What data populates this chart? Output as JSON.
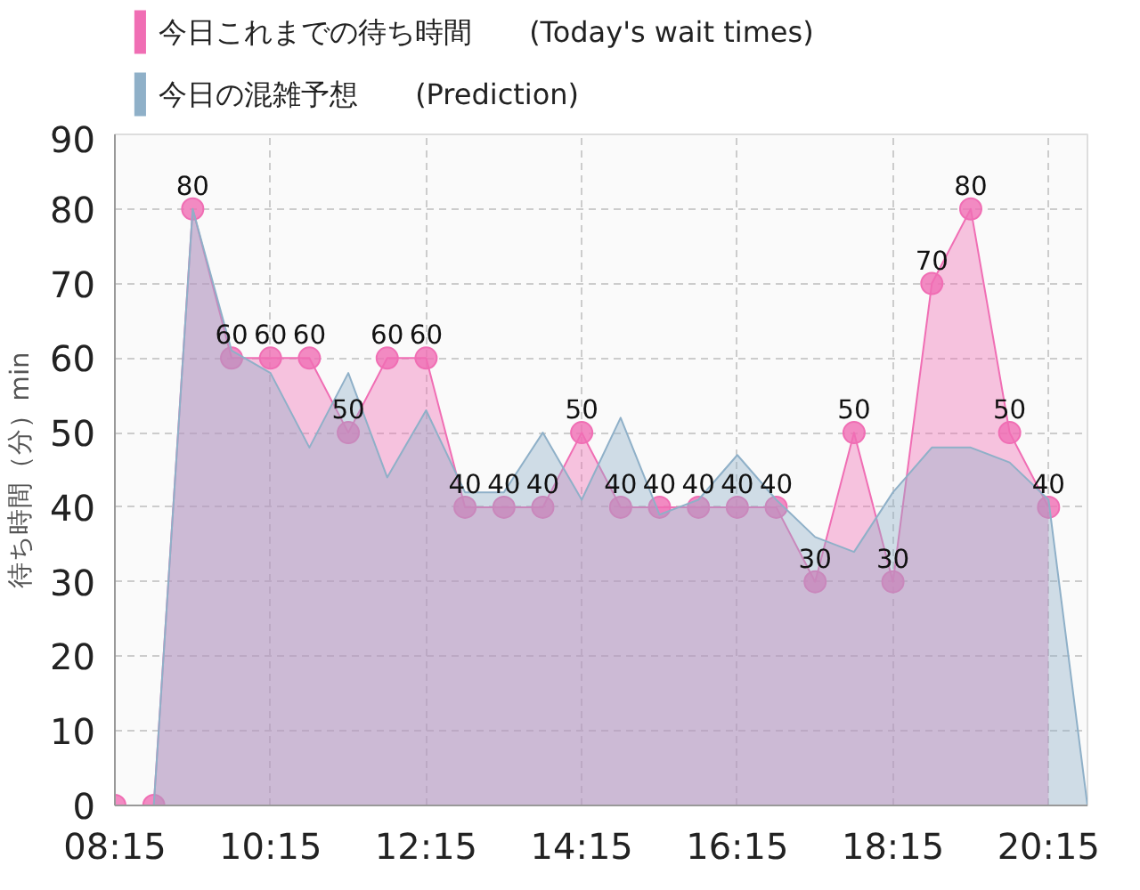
{
  "chart_data": {
    "type": "area",
    "ylabel": "待ち時間（分）min",
    "x": [
      8.25,
      8.75,
      9.25,
      9.75,
      10.25,
      10.75,
      11.25,
      11.75,
      12.25,
      12.75,
      13.25,
      13.75,
      14.25,
      14.75,
      15.25,
      15.75,
      16.25,
      16.75,
      17.25,
      17.75,
      18.25,
      18.75,
      19.25,
      19.75,
      20.25
    ],
    "series": [
      {
        "name": "今日これまでの待ち時間　　(Today's wait times)",
        "color": "#f06eb4",
        "marker": "circle",
        "values": [
          0,
          0,
          80,
          60,
          60,
          60,
          50,
          60,
          60,
          40,
          40,
          40,
          50,
          40,
          40,
          40,
          40,
          40,
          30,
          50,
          30,
          70,
          80,
          50,
          40
        ],
        "value_labels": [
          null,
          null,
          "80",
          "60",
          "60",
          "60",
          "50",
          "60",
          "60",
          "40",
          "40",
          "40",
          "50",
          "40",
          "40",
          "40",
          "40",
          "40",
          "30",
          "50",
          "30",
          "70",
          "80",
          "50",
          "40"
        ]
      },
      {
        "name": "今日の混雑予想　　(Prediction)",
        "color": "#8fb0c8",
        "x": [
          8.25,
          8.75,
          9.25,
          9.75,
          10.25,
          10.75,
          11.25,
          11.75,
          12.25,
          12.75,
          13.25,
          13.75,
          14.25,
          14.75,
          15.25,
          15.75,
          16.25,
          16.75,
          17.25,
          17.75,
          18.25,
          18.75,
          19.25,
          19.75,
          20.25,
          20.75
        ],
        "values": [
          0,
          0,
          80,
          61,
          58,
          48,
          58,
          44,
          53,
          42,
          42,
          50,
          41,
          52,
          39,
          41,
          47,
          41,
          36,
          34,
          42,
          48,
          48,
          46,
          41,
          0
        ]
      }
    ],
    "xlim": [
      8.25,
      20.75
    ],
    "xticks": [
      {
        "value": 8.25,
        "label": "08:15"
      },
      {
        "value": 10.25,
        "label": "10:15"
      },
      {
        "value": 12.25,
        "label": "12:15"
      },
      {
        "value": 14.25,
        "label": "14:15"
      },
      {
        "value": 16.25,
        "label": "16:15"
      },
      {
        "value": 18.25,
        "label": "18:15"
      },
      {
        "value": 20.25,
        "label": "20:15"
      }
    ],
    "ylim": [
      0,
      90
    ],
    "yticks": [
      0,
      10,
      20,
      30,
      40,
      50,
      60,
      70,
      80,
      90
    ],
    "grid": true,
    "legend": "top left"
  }
}
